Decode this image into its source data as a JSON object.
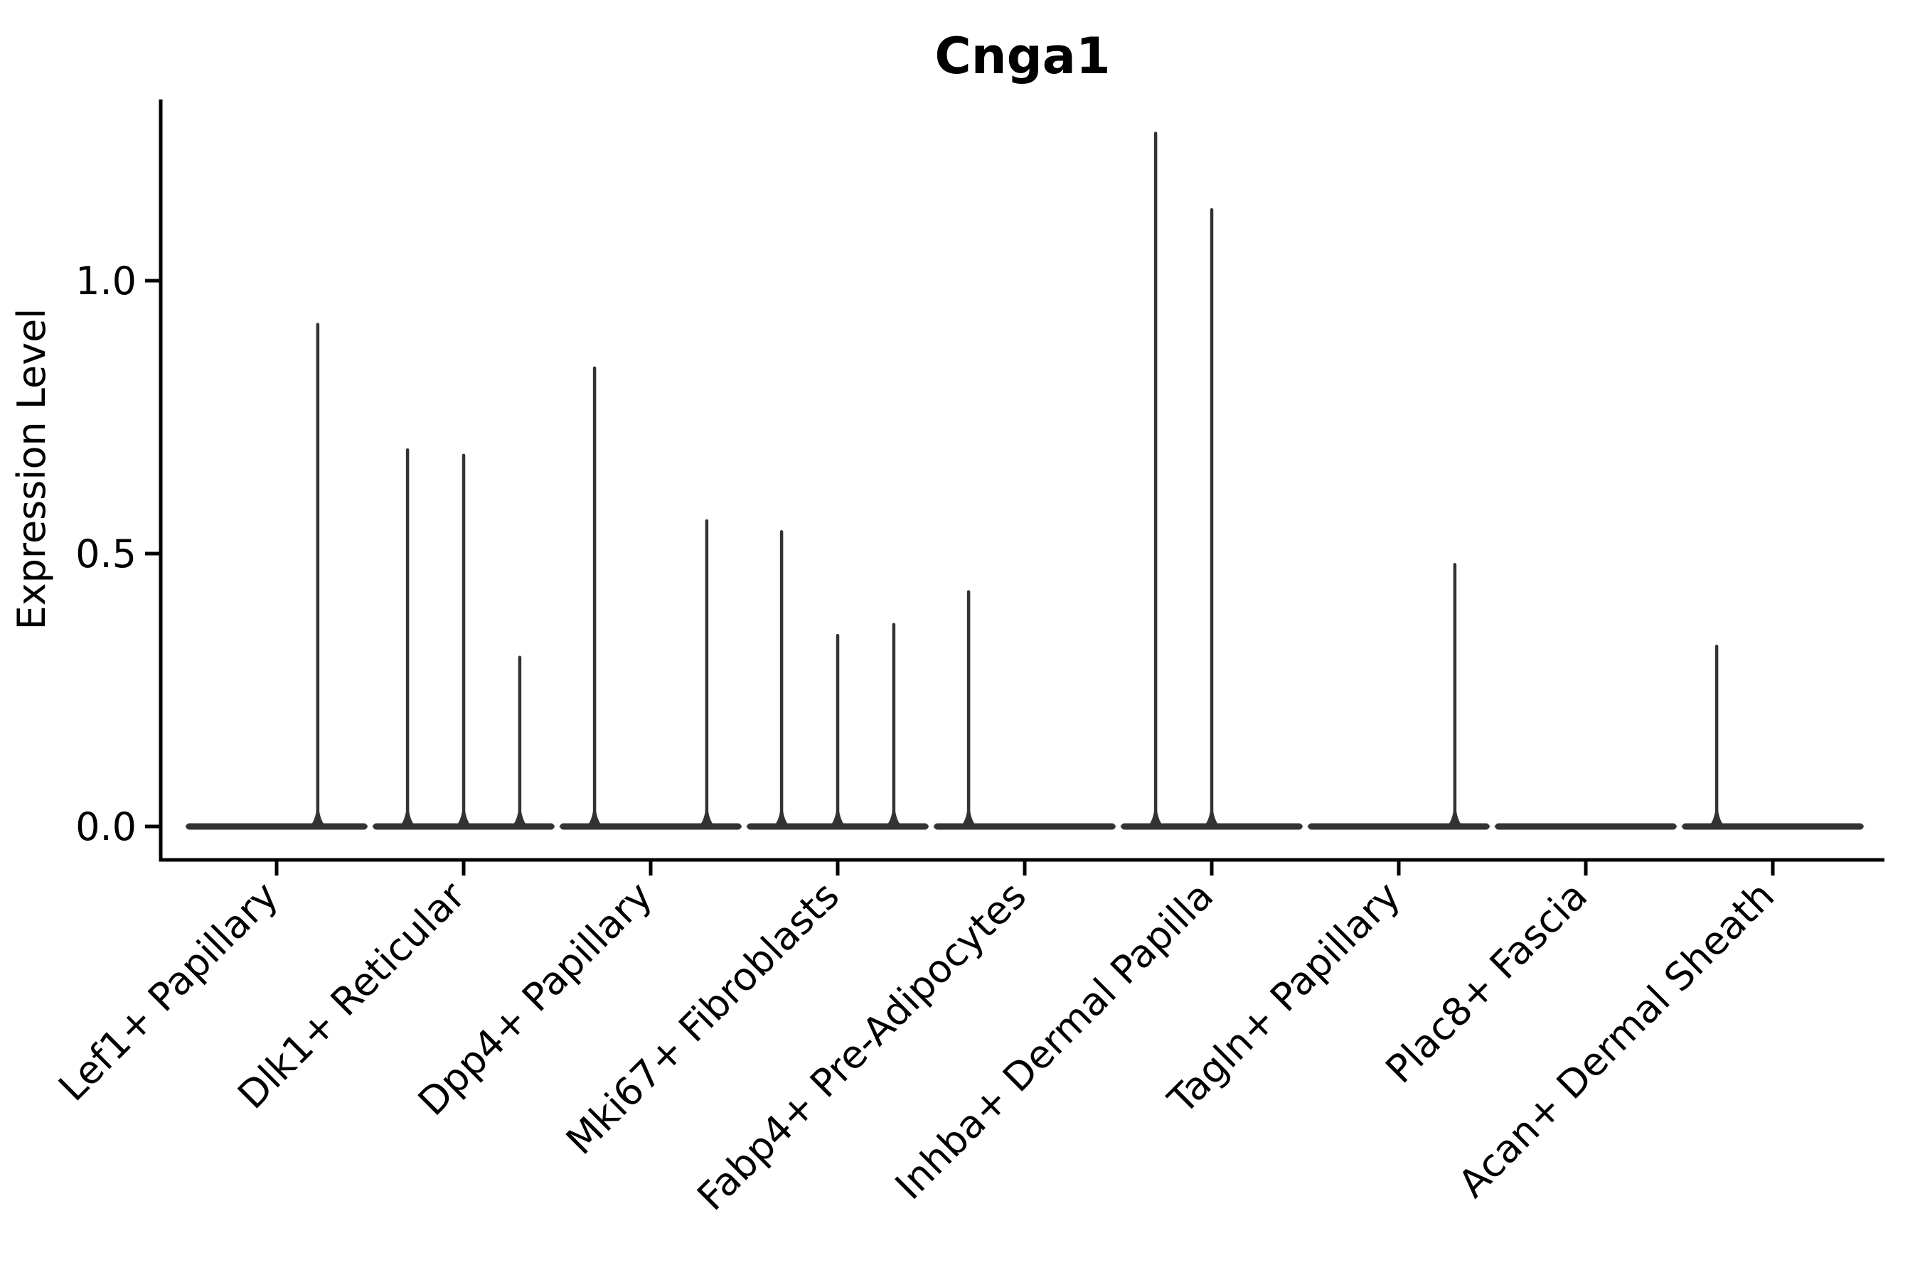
{
  "title": "Cnga1",
  "ylabel": "Expression Level",
  "chart_data": {
    "type": "violin",
    "title": "Cnga1",
    "xlabel": "",
    "ylabel": "Expression Level",
    "ylim": [
      -0.07,
      1.33
    ],
    "grid": false,
    "legend": "none",
    "xticklabel_rotation": 45,
    "yticks": [
      {
        "label": "0.0",
        "value": 0.0
      },
      {
        "label": "0.5",
        "value": 0.5
      },
      {
        "label": "1.0",
        "value": 1.0
      }
    ],
    "categories": [
      "Lef1+ Papillary",
      "Dlk1+ Reticular",
      "Dpp4+ Papillary",
      "Mki67+ Fibroblasts",
      "Fabp4+ Pre-Adipocytes",
      "Inhba+ Dermal Papilla",
      "Tagln+ Papillary",
      "Plac8+ Fascia",
      "Acan+ Dermal Sheath"
    ],
    "violin_color": "#333333",
    "violins": [
      {
        "category": "Lef1+ Papillary",
        "baseline_value": 0.0,
        "spikes": [
          {
            "offset": 0.22,
            "value": 0.92
          }
        ]
      },
      {
        "category": "Dlk1+ Reticular",
        "baseline_value": 0.0,
        "spikes": [
          {
            "offset": -0.3,
            "value": 0.69
          },
          {
            "offset": 0.0,
            "value": 0.68
          },
          {
            "offset": 0.3,
            "value": 0.31
          }
        ]
      },
      {
        "category": "Dpp4+ Papillary",
        "baseline_value": 0.0,
        "spikes": [
          {
            "offset": -0.3,
            "value": 0.84
          },
          {
            "offset": 0.3,
            "value": 0.56
          }
        ]
      },
      {
        "category": "Mki67+ Fibroblasts",
        "baseline_value": 0.0,
        "spikes": [
          {
            "offset": -0.3,
            "value": 0.54
          },
          {
            "offset": 0.0,
            "value": 0.35
          },
          {
            "offset": 0.3,
            "value": 0.37
          }
        ]
      },
      {
        "category": "Fabp4+ Pre-Adipocytes",
        "baseline_value": 0.0,
        "spikes": [
          {
            "offset": -0.3,
            "value": 0.43
          }
        ]
      },
      {
        "category": "Inhba+ Dermal Papilla",
        "baseline_value": 0.0,
        "spikes": [
          {
            "offset": -0.3,
            "value": 1.27
          },
          {
            "offset": 0.0,
            "value": 1.13
          }
        ]
      },
      {
        "category": "Tagln+ Papillary",
        "baseline_value": 0.0,
        "spikes": [
          {
            "offset": 0.3,
            "value": 0.48
          }
        ]
      },
      {
        "category": "Plac8+ Fascia",
        "baseline_value": 0.0,
        "spikes": []
      },
      {
        "category": "Acan+ Dermal Sheath",
        "baseline_value": 0.0,
        "spikes": [
          {
            "offset": -0.3,
            "value": 0.33
          }
        ]
      }
    ]
  }
}
